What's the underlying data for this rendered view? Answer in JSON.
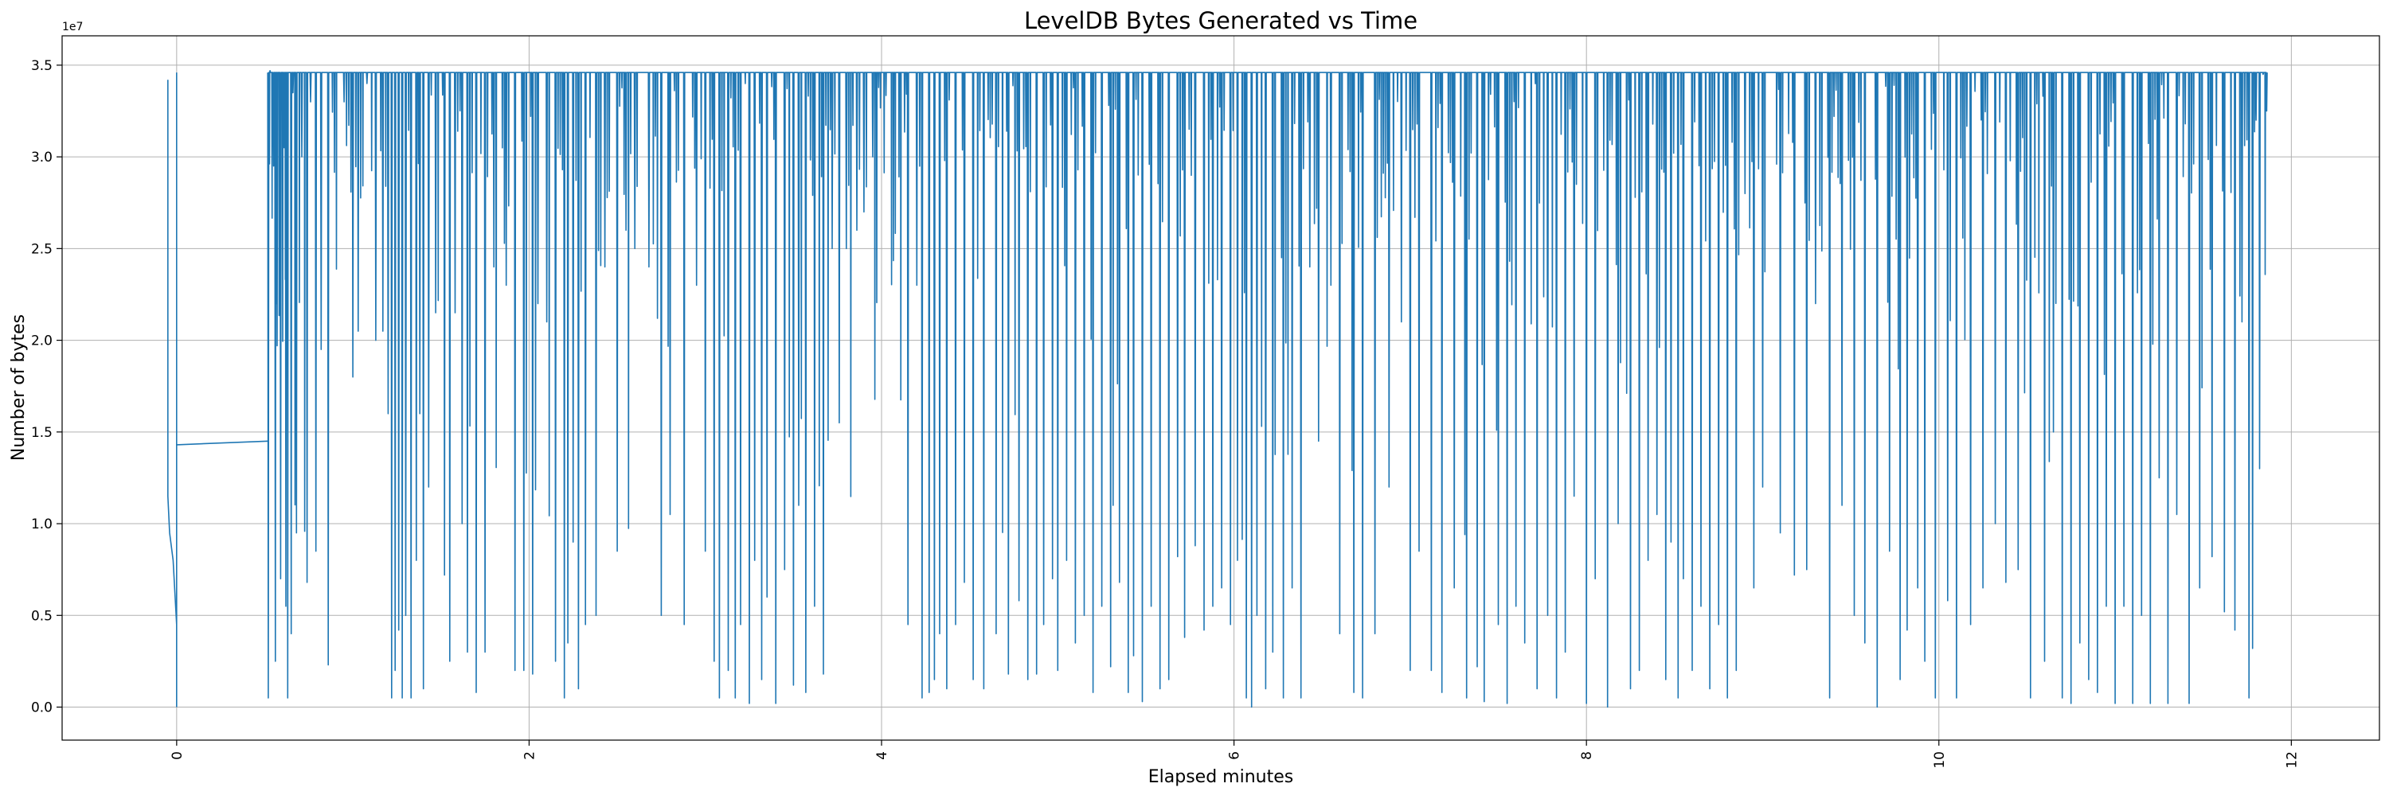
{
  "chart_data": {
    "type": "line",
    "title": "LevelDB Bytes Generated vs Time",
    "xlabel": "Elapsed minutes",
    "ylabel": "Number of bytes",
    "offset_label": "1e7",
    "xlim": [
      -0.65,
      12.5
    ],
    "ylim": [
      -0.18,
      3.66
    ],
    "x_ticks": [
      0,
      2,
      4,
      6,
      8,
      10,
      12
    ],
    "x_tick_labels": [
      "0",
      "2",
      "4",
      "6",
      "8",
      "10",
      "12"
    ],
    "y_ticks": [
      0.0,
      0.5,
      1.0,
      1.5,
      2.0,
      2.5,
      3.0,
      3.5
    ],
    "y_tick_labels": [
      "0.0",
      "0.5",
      "1.0",
      "1.5",
      "2.0",
      "2.5",
      "3.0",
      "3.5"
    ],
    "grid": true,
    "line_color": "#1f77b4",
    "plateau": 3.46,
    "series": [
      {
        "name": "bytes",
        "segments": [
          {
            "x": [
              -0.05,
              -0.05,
              -0.04,
              -0.02,
              0.0,
              0.0,
              0.0
            ],
            "y": [
              3.42,
              1.15,
              0.95,
              0.8,
              0.45,
              0.0,
              3.46
            ]
          },
          {
            "x": [
              0.0,
              0.52
            ],
            "y": [
              1.43,
              1.45
            ]
          }
        ],
        "dips_note": "from 0.52 to 11.88 min the series sits at ~3.46e7 and repeatedly drops to lower values",
        "dips": [
          [
            0.52,
            0.05
          ],
          [
            0.53,
            3.47
          ],
          [
            0.55,
            2.95
          ],
          [
            0.56,
            0.25
          ],
          [
            0.57,
            1.97
          ],
          [
            0.59,
            0.7
          ],
          [
            0.61,
            3.05
          ],
          [
            0.62,
            0.55
          ],
          [
            0.63,
            0.05
          ],
          [
            0.65,
            0.4
          ],
          [
            0.66,
            3.35
          ],
          [
            0.68,
            0.95
          ],
          [
            0.71,
            3.0
          ],
          [
            0.74,
            0.68
          ],
          [
            0.76,
            3.3
          ],
          [
            0.79,
            0.85
          ],
          [
            0.82,
            1.95
          ],
          [
            0.86,
            0.23
          ],
          [
            0.95,
            3.3
          ],
          [
            1.0,
            1.8
          ],
          [
            1.03,
            2.05
          ],
          [
            1.08,
            3.4
          ],
          [
            1.13,
            2.0
          ],
          [
            1.17,
            2.05
          ],
          [
            1.2,
            1.6
          ],
          [
            1.22,
            0.05
          ],
          [
            1.24,
            0.2
          ],
          [
            1.26,
            0.42
          ],
          [
            1.28,
            0.05
          ],
          [
            1.3,
            0.5
          ],
          [
            1.33,
            0.05
          ],
          [
            1.36,
            0.8
          ],
          [
            1.38,
            1.6
          ],
          [
            1.4,
            0.1
          ],
          [
            1.43,
            1.2
          ],
          [
            1.47,
            2.15
          ],
          [
            1.52,
            0.72
          ],
          [
            1.55,
            0.25
          ],
          [
            1.58,
            2.15
          ],
          [
            1.62,
            1.0
          ],
          [
            1.65,
            0.3
          ],
          [
            1.7,
            0.08
          ],
          [
            1.75,
            0.3
          ],
          [
            1.8,
            2.4
          ],
          [
            1.87,
            2.3
          ],
          [
            1.92,
            0.2
          ],
          [
            1.97,
            0.2
          ],
          [
            2.02,
            0.18
          ],
          [
            2.05,
            2.2
          ],
          [
            2.1,
            2.1
          ],
          [
            2.15,
            0.25
          ],
          [
            2.2,
            0.05
          ],
          [
            2.22,
            0.35
          ],
          [
            2.25,
            0.9
          ],
          [
            2.28,
            0.1
          ],
          [
            2.32,
            0.45
          ],
          [
            2.38,
            0.5
          ],
          [
            2.43,
            2.4
          ],
          [
            2.5,
            0.85
          ],
          [
            2.55,
            2.6
          ],
          [
            2.6,
            2.5
          ],
          [
            2.68,
            2.4
          ],
          [
            2.75,
            0.5
          ],
          [
            2.8,
            1.05
          ],
          [
            2.88,
            0.45
          ],
          [
            2.95,
            2.3
          ],
          [
            3.0,
            0.85
          ],
          [
            3.05,
            0.25
          ],
          [
            3.08,
            0.05
          ],
          [
            3.13,
            0.2
          ],
          [
            3.17,
            0.05
          ],
          [
            3.2,
            0.45
          ],
          [
            3.25,
            0.02
          ],
          [
            3.28,
            0.8
          ],
          [
            3.32,
            0.15
          ],
          [
            3.35,
            0.6
          ],
          [
            3.4,
            0.02
          ],
          [
            3.45,
            0.75
          ],
          [
            3.5,
            0.12
          ],
          [
            3.53,
            1.1
          ],
          [
            3.57,
            0.08
          ],
          [
            3.62,
            0.55
          ],
          [
            3.67,
            0.18
          ],
          [
            3.72,
            2.5
          ],
          [
            3.76,
            1.55
          ],
          [
            3.8,
            2.5
          ],
          [
            3.86,
            2.6
          ],
          [
            3.9,
            2.7
          ],
          [
            3.95,
            3.0
          ],
          [
            4.15,
            0.45
          ],
          [
            4.2,
            2.3
          ],
          [
            4.23,
            0.05
          ],
          [
            4.27,
            0.08
          ],
          [
            4.3,
            0.15
          ],
          [
            4.33,
            0.4
          ],
          [
            4.37,
            0.1
          ],
          [
            4.42,
            0.45
          ],
          [
            4.47,
            0.68
          ],
          [
            4.52,
            0.15
          ],
          [
            4.58,
            0.1
          ],
          [
            4.65,
            0.4
          ],
          [
            4.72,
            0.18
          ],
          [
            4.78,
            0.58
          ],
          [
            4.83,
            0.15
          ],
          [
            4.88,
            0.18
          ],
          [
            4.92,
            0.45
          ],
          [
            4.97,
            0.7
          ],
          [
            5.0,
            0.2
          ],
          [
            5.05,
            0.8
          ],
          [
            5.1,
            0.35
          ],
          [
            5.15,
            0.5
          ],
          [
            5.2,
            0.08
          ],
          [
            5.25,
            0.55
          ],
          [
            5.3,
            0.22
          ],
          [
            5.35,
            0.68
          ],
          [
            5.4,
            0.08
          ],
          [
            5.43,
            0.28
          ],
          [
            5.48,
            0.03
          ],
          [
            5.53,
            0.55
          ],
          [
            5.58,
            0.1
          ],
          [
            5.63,
            0.15
          ],
          [
            5.68,
            0.82
          ],
          [
            5.72,
            0.38
          ],
          [
            5.78,
            0.88
          ],
          [
            5.83,
            0.42
          ],
          [
            5.88,
            0.55
          ],
          [
            5.93,
            0.65
          ],
          [
            5.98,
            0.45
          ],
          [
            6.02,
            0.8
          ],
          [
            6.07,
            0.05
          ],
          [
            6.1,
            0.0
          ],
          [
            6.13,
            0.5
          ],
          [
            6.18,
            0.1
          ],
          [
            6.22,
            0.3
          ],
          [
            6.28,
            0.05
          ],
          [
            6.33,
            0.65
          ],
          [
            6.38,
            0.05
          ],
          [
            6.43,
            2.4
          ],
          [
            6.48,
            1.45
          ],
          [
            6.55,
            2.3
          ],
          [
            6.6,
            0.4
          ],
          [
            6.68,
            0.08
          ],
          [
            6.73,
            0.05
          ],
          [
            6.8,
            0.4
          ],
          [
            6.88,
            1.2
          ],
          [
            6.95,
            2.1
          ],
          [
            7.0,
            0.2
          ],
          [
            7.05,
            0.85
          ],
          [
            7.12,
            0.2
          ],
          [
            7.18,
            0.08
          ],
          [
            7.25,
            0.65
          ],
          [
            7.32,
            0.05
          ],
          [
            7.38,
            0.22
          ],
          [
            7.42,
            0.03
          ],
          [
            7.5,
            0.45
          ],
          [
            7.55,
            0.02
          ],
          [
            7.6,
            0.55
          ],
          [
            7.65,
            0.35
          ],
          [
            7.72,
            0.1
          ],
          [
            7.78,
            0.5
          ],
          [
            7.83,
            0.05
          ],
          [
            7.88,
            0.3
          ],
          [
            7.93,
            1.15
          ],
          [
            8.0,
            0.02
          ],
          [
            8.05,
            0.7
          ],
          [
            8.12,
            0.0
          ],
          [
            8.18,
            1.0
          ],
          [
            8.25,
            0.1
          ],
          [
            8.3,
            0.2
          ],
          [
            8.35,
            0.8
          ],
          [
            8.4,
            1.05
          ],
          [
            8.45,
            0.15
          ],
          [
            8.48,
            0.9
          ],
          [
            8.52,
            0.05
          ],
          [
            8.55,
            0.7
          ],
          [
            8.6,
            0.2
          ],
          [
            8.65,
            0.55
          ],
          [
            8.7,
            0.1
          ],
          [
            8.75,
            0.45
          ],
          [
            8.8,
            0.05
          ],
          [
            8.85,
            0.2
          ],
          [
            8.9,
            2.8
          ],
          [
            8.95,
            0.65
          ],
          [
            9.0,
            1.2
          ],
          [
            9.1,
            0.95
          ],
          [
            9.18,
            0.72
          ],
          [
            9.25,
            0.75
          ],
          [
            9.3,
            2.2
          ],
          [
            9.38,
            0.05
          ],
          [
            9.45,
            1.1
          ],
          [
            9.52,
            0.5
          ],
          [
            9.58,
            0.35
          ],
          [
            9.65,
            0.0
          ],
          [
            9.72,
            0.85
          ],
          [
            9.78,
            0.15
          ],
          [
            9.82,
            0.42
          ],
          [
            9.88,
            0.65
          ],
          [
            9.92,
            0.25
          ],
          [
            9.98,
            0.05
          ],
          [
            10.05,
            0.58
          ],
          [
            10.1,
            0.05
          ],
          [
            10.18,
            0.45
          ],
          [
            10.25,
            0.65
          ],
          [
            10.32,
            1.0
          ],
          [
            10.38,
            0.68
          ],
          [
            10.45,
            0.75
          ],
          [
            10.52,
            0.05
          ],
          [
            10.6,
            0.25
          ],
          [
            10.65,
            1.5
          ],
          [
            10.7,
            0.05
          ],
          [
            10.75,
            0.02
          ],
          [
            10.8,
            0.35
          ],
          [
            10.85,
            0.15
          ],
          [
            10.9,
            0.08
          ],
          [
            10.95,
            0.55
          ],
          [
            11.0,
            0.02
          ],
          [
            11.05,
            0.55
          ],
          [
            11.1,
            0.02
          ],
          [
            11.15,
            0.5
          ],
          [
            11.2,
            0.02
          ],
          [
            11.25,
            1.25
          ],
          [
            11.3,
            0.02
          ],
          [
            11.35,
            1.05
          ],
          [
            11.42,
            0.02
          ],
          [
            11.48,
            0.65
          ],
          [
            11.55,
            0.82
          ],
          [
            11.62,
            0.52
          ],
          [
            11.68,
            0.42
          ],
          [
            11.72,
            2.1
          ],
          [
            11.76,
            0.05
          ],
          [
            11.78,
            0.32
          ],
          [
            11.8,
            3.2
          ],
          [
            11.82,
            1.3
          ],
          [
            11.84,
            3.45
          ],
          [
            11.86,
            3.25
          ]
        ]
      }
    ]
  }
}
